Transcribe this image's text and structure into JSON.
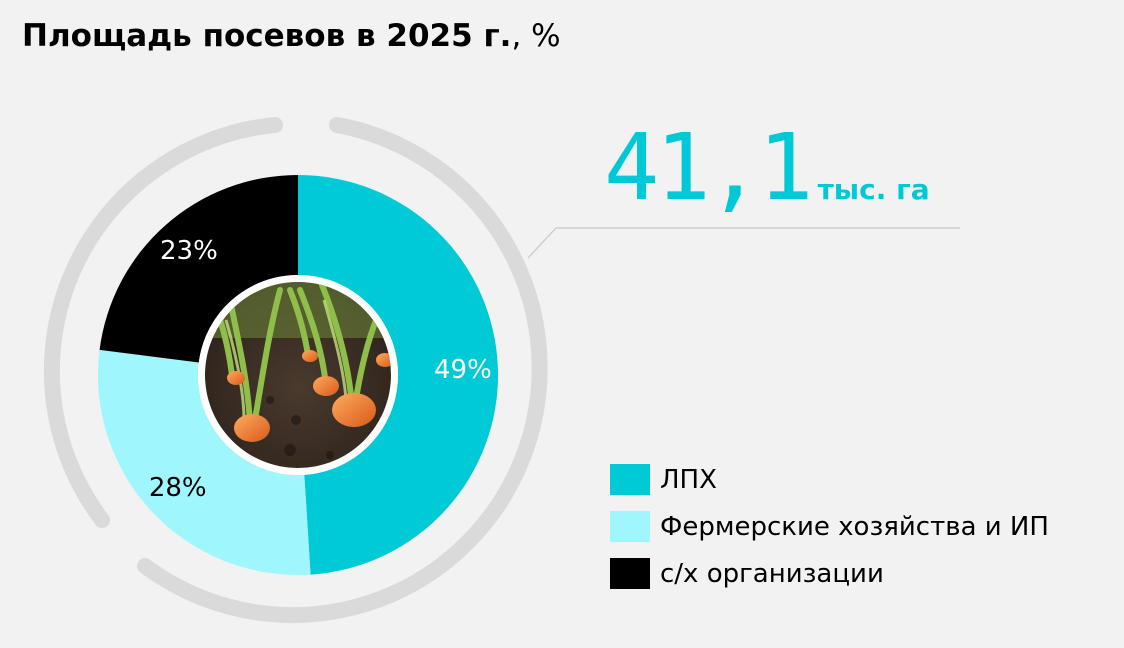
{
  "title": {
    "main": "Площадь посевов в 2025 г.",
    "unit": ", %"
  },
  "total": {
    "value": "41,1",
    "unit": "тыс. га"
  },
  "chart_data": {
    "type": "pie",
    "variant": "donut",
    "title": "Площадь посевов в 2025 г., %",
    "center_image": "carrot-seedlings-photo",
    "total_label": "41,1 тыс. га",
    "series": [
      {
        "name": "ЛПХ",
        "value": 49,
        "label": "49%",
        "color": "#00cad6"
      },
      {
        "name": "Фермерские хозяйства и ИП",
        "value": 28,
        "label": "28%",
        "color": "#9ff6fc"
      },
      {
        "name": "с/х организации",
        "value": 23,
        "label": "23%",
        "color": "#000000"
      }
    ],
    "legend_position": "bottom-right"
  },
  "legend": [
    {
      "label": "ЛПХ",
      "color": "#00cad6"
    },
    {
      "label": "Фермерские хозяйства и ИП",
      "color": "#9ff6fc"
    },
    {
      "label": "с/х организации",
      "color": "#000000"
    }
  ],
  "colors": {
    "accent": "#00c8d7",
    "ring": "#dadada",
    "background": "#f2f2f2"
  }
}
